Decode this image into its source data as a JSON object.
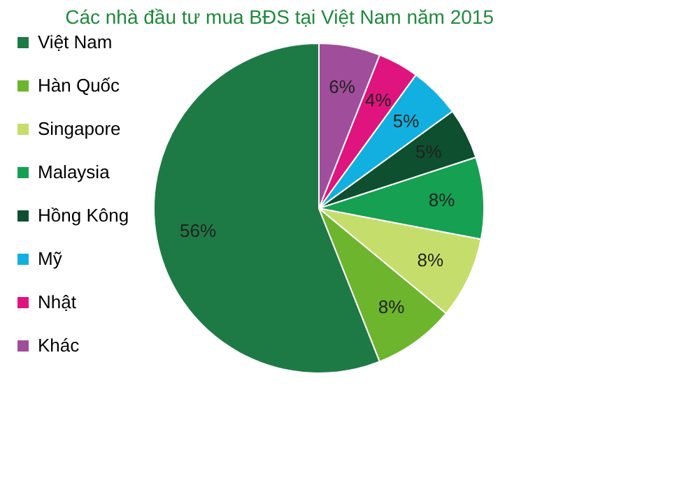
{
  "chart_data": {
    "type": "pie",
    "title": "Các nhà đầu tư mua BĐS tại Việt Nam năm 2015",
    "categories": [
      "Việt Nam",
      "Hàn Quốc",
      "Singapore",
      "Malaysia",
      "Hồng Kông",
      "Mỹ",
      "Nhật",
      "Khác"
    ],
    "values": [
      56,
      8,
      8,
      8,
      5,
      5,
      4,
      6
    ],
    "value_labels": [
      "56%",
      "8%",
      "8%",
      "8%",
      "5%",
      "5%",
      "4%",
      "6%"
    ],
    "colors": [
      "#1e7a45",
      "#6cb52d",
      "#c5de6b",
      "#16a052",
      "#0d4f2f",
      "#12b0e0",
      "#e0147e",
      "#a04d9b"
    ],
    "legend": "left"
  }
}
